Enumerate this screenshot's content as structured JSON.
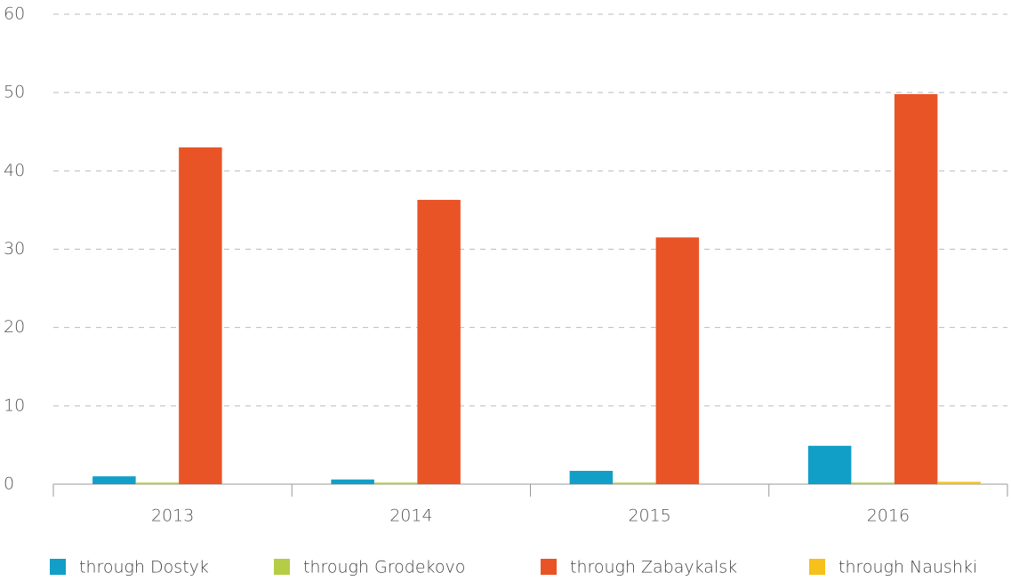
{
  "chart_data": {
    "type": "bar",
    "categories": [
      "2013",
      "2014",
      "2015",
      "2016"
    ],
    "series": [
      {
        "name": "through Dostyk",
        "color": "#119fc8",
        "values": [
          1.0,
          0.6,
          1.7,
          4.9
        ]
      },
      {
        "name": "through Grodekovo",
        "color": "#b5cc45",
        "values": [
          0.2,
          0.2,
          0.2,
          0.2
        ]
      },
      {
        "name": "through Zabaykalsk",
        "color": "#e95427",
        "values": [
          43,
          36.3,
          31.5,
          49.8
        ]
      },
      {
        "name": "through Naushki",
        "color": "#f5c11a",
        "values": [
          0,
          0,
          0,
          0.3
        ]
      }
    ],
    "ylim": [
      0,
      60
    ],
    "yticks": [
      0,
      10,
      20,
      30,
      40,
      50,
      60
    ],
    "grid": true,
    "legend": "bottom"
  }
}
